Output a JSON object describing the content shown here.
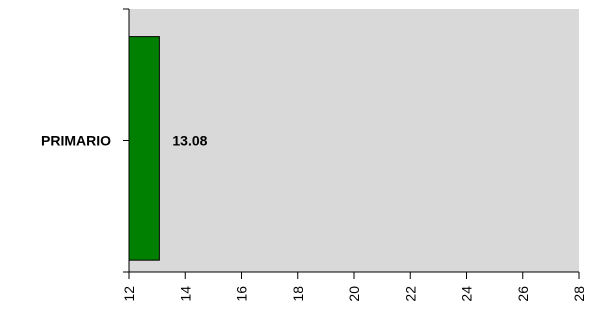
{
  "chart_data": {
    "type": "bar",
    "orientation": "horizontal",
    "categories": [
      "PRIMARIO"
    ],
    "values": [
      13.08
    ],
    "value_labels": [
      "13.08"
    ],
    "xlim": [
      12,
      28
    ],
    "x_ticks": [
      12,
      14,
      16,
      18,
      20,
      22,
      24,
      26,
      28
    ],
    "x_tick_labels": [
      "12",
      "14",
      "16",
      "18",
      "20",
      "22",
      "24",
      "26",
      "28"
    ],
    "title": "",
    "xlabel": "",
    "ylabel": "",
    "grid": false,
    "legend": "none",
    "colors": {
      "bar": "#008000",
      "bar_border": "#000000",
      "plot_background": "#d9d9d9",
      "axis": "#000000"
    }
  }
}
